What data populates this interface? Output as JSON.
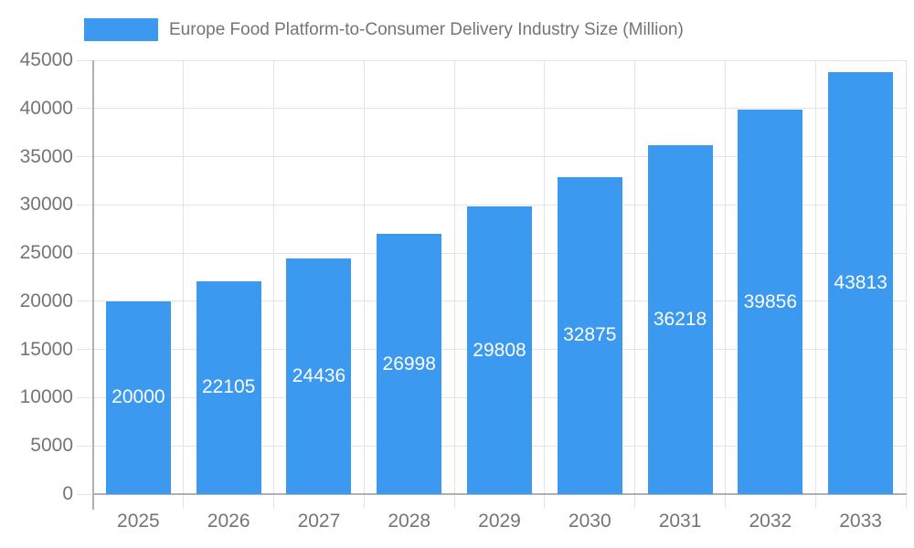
{
  "chart_data": {
    "type": "bar",
    "title": "Europe Food Platform-to-Consumer Delivery Industry Size (Million)",
    "legend": {
      "position": "top",
      "label": "Europe Food Platform-to-Consumer Delivery Industry Size (Million)"
    },
    "categories": [
      "2025",
      "2026",
      "2027",
      "2028",
      "2029",
      "2030",
      "2031",
      "2032",
      "2033"
    ],
    "series": [
      {
        "name": "Europe Food Platform-to-Consumer Delivery Industry Size (Million)",
        "values": [
          20000,
          22105,
          24436,
          26998,
          29808,
          32875,
          36218,
          39856,
          43813
        ]
      }
    ],
    "bar_value_labels": [
      "20000",
      "22105",
      "24436",
      "26998",
      "29808",
      "32875",
      "36218",
      "39856",
      "43813"
    ],
    "xlabel": "",
    "ylabel": "",
    "ylim": [
      0,
      45000
    ],
    "ytick_step": 5000,
    "yticks": [
      0,
      5000,
      10000,
      15000,
      20000,
      25000,
      30000,
      35000,
      40000,
      45000
    ],
    "grid": true,
    "colors": {
      "bar": "#3b99f0",
      "grid": "#e4e4e4",
      "axis_line": "#b0b0b0",
      "axis_text": "#757575",
      "bar_label_text": "#ffffff",
      "background": "#ffffff"
    }
  }
}
